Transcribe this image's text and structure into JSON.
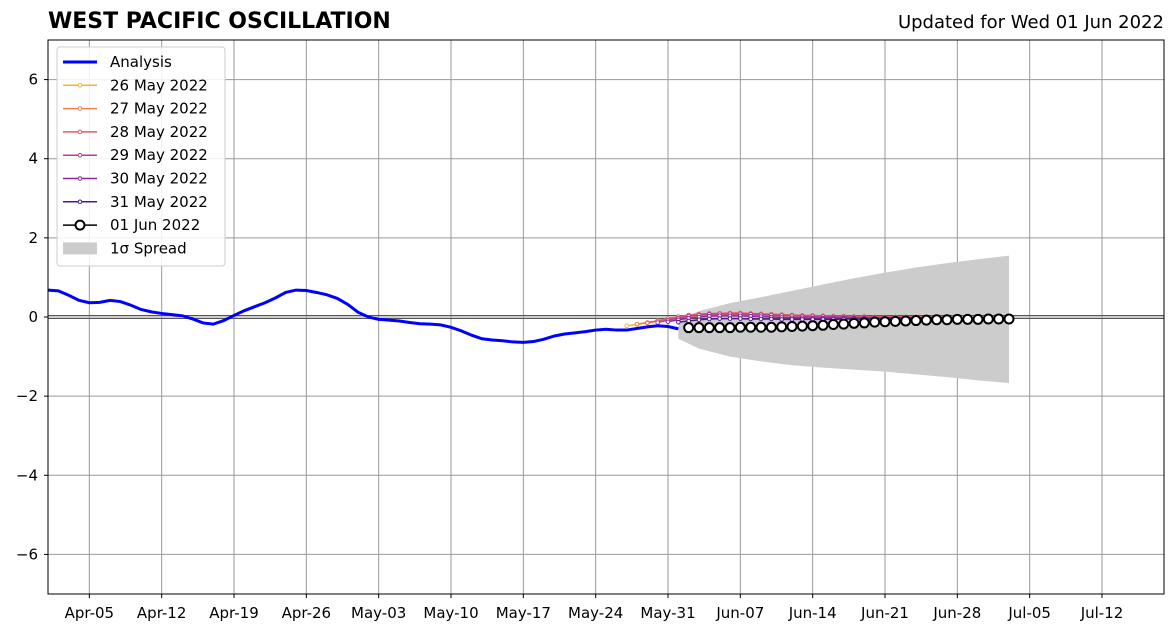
{
  "chart_data": {
    "type": "line",
    "title": "WEST PACIFIC OSCILLATION",
    "subtitle": "Updated for Wed 01 Jun 2022",
    "xlabel": "",
    "ylabel": "",
    "xlim": [
      "2022-04-01",
      "2022-07-18"
    ],
    "ylim": [
      -7,
      7
    ],
    "x_ticks": [
      "2022-04-05",
      "2022-04-12",
      "2022-04-19",
      "2022-04-26",
      "2022-05-03",
      "2022-05-10",
      "2022-05-17",
      "2022-05-24",
      "2022-05-31",
      "2022-06-07",
      "2022-06-14",
      "2022-06-21",
      "2022-06-28",
      "2022-07-05",
      "2022-07-12"
    ],
    "x_tick_labels": [
      "Apr-05",
      "Apr-12",
      "Apr-19",
      "Apr-26",
      "May-03",
      "May-10",
      "May-17",
      "May-24",
      "May-31",
      "Jun-07",
      "Jun-14",
      "Jun-21",
      "Jun-28",
      "Jul-05",
      "Jul-12"
    ],
    "y_ticks": [
      -6,
      -4,
      -2,
      0,
      2,
      4,
      6
    ],
    "y_tick_labels": [
      "−6",
      "−4",
      "−2",
      "0",
      "2",
      "4",
      "6"
    ],
    "grid": true,
    "zero_line": true,
    "legend_position": "top-left",
    "analysis": {
      "name": "Analysis",
      "color": "#0000ff",
      "x": [
        "2022-04-01",
        "2022-04-02",
        "2022-04-03",
        "2022-04-04",
        "2022-04-05",
        "2022-04-06",
        "2022-04-07",
        "2022-04-08",
        "2022-04-09",
        "2022-04-10",
        "2022-04-11",
        "2022-04-12",
        "2022-04-13",
        "2022-04-14",
        "2022-04-15",
        "2022-04-16",
        "2022-04-17",
        "2022-04-18",
        "2022-04-19",
        "2022-04-20",
        "2022-04-21",
        "2022-04-22",
        "2022-04-23",
        "2022-04-24",
        "2022-04-25",
        "2022-04-26",
        "2022-04-27",
        "2022-04-28",
        "2022-04-29",
        "2022-04-30",
        "2022-05-01",
        "2022-05-02",
        "2022-05-03",
        "2022-05-04",
        "2022-05-05",
        "2022-05-06",
        "2022-05-07",
        "2022-05-08",
        "2022-05-09",
        "2022-05-10",
        "2022-05-11",
        "2022-05-12",
        "2022-05-13",
        "2022-05-14",
        "2022-05-15",
        "2022-05-16",
        "2022-05-17",
        "2022-05-18",
        "2022-05-19",
        "2022-05-20",
        "2022-05-21",
        "2022-05-22",
        "2022-05-23",
        "2022-05-24",
        "2022-05-25",
        "2022-05-26",
        "2022-05-27",
        "2022-05-28",
        "2022-05-29",
        "2022-05-30",
        "2022-05-31",
        "2022-06-01"
      ],
      "y": [
        0.68,
        0.66,
        0.55,
        0.42,
        0.36,
        0.37,
        0.42,
        0.39,
        0.3,
        0.19,
        0.13,
        0.09,
        0.06,
        0.03,
        -0.05,
        -0.15,
        -0.18,
        -0.09,
        0.04,
        0.16,
        0.26,
        0.36,
        0.48,
        0.62,
        0.68,
        0.67,
        0.62,
        0.56,
        0.47,
        0.32,
        0.12,
        0,
        -0.06,
        -0.08,
        -0.1,
        -0.14,
        -0.17,
        -0.18,
        -0.2,
        -0.26,
        -0.35,
        -0.46,
        -0.55,
        -0.58,
        -0.6,
        -0.63,
        -0.64,
        -0.62,
        -0.56,
        -0.48,
        -0.43,
        -0.4,
        -0.37,
        -0.33,
        -0.31,
        -0.33,
        -0.33,
        -0.29,
        -0.25,
        -0.22,
        -0.24,
        -0.3
      ]
    },
    "forecasts": [
      {
        "name": "26 May 2022",
        "color": "#f9b32f",
        "start": "2022-05-27",
        "y": [
          -0.22,
          -0.19,
          -0.15,
          -0.1,
          -0.06,
          -0.02,
          0,
          0.02,
          0.03,
          0.04,
          0.04,
          0.04,
          0.04,
          0.04,
          0.03,
          0.03,
          0.03,
          0.02,
          0.02,
          0.02,
          0.01,
          0.01,
          0.01,
          0.01,
          0,
          0,
          0,
          0,
          0,
          0
        ]
      },
      {
        "name": "27 May 2022",
        "color": "#f0804a",
        "start": "2022-05-28",
        "y": [
          -0.18,
          -0.14,
          -0.09,
          -0.04,
          0,
          0.03,
          0.05,
          0.06,
          0.06,
          0.06,
          0.06,
          0.05,
          0.05,
          0.04,
          0.04,
          0.03,
          0.03,
          0.02,
          0.02,
          0.02,
          0.01,
          0.01,
          0.01,
          0,
          0,
          0,
          0,
          0,
          0,
          0
        ]
      },
      {
        "name": "28 May 2022",
        "color": "#e05c6b",
        "start": "2022-05-29",
        "y": [
          -0.15,
          -0.1,
          -0.04,
          0.01,
          0.05,
          0.07,
          0.09,
          0.09,
          0.1,
          0.1,
          0.09,
          0.08,
          0.07,
          0.06,
          0.05,
          0.04,
          0.04,
          0.03,
          0.02,
          0.02,
          0.01,
          0.01,
          0,
          0,
          0,
          0,
          0,
          0,
          0,
          0
        ]
      },
      {
        "name": "29 May 2022",
        "color": "#b93e8c",
        "start": "2022-05-30",
        "y": [
          -0.14,
          -0.08,
          -0.03,
          0.02,
          0.05,
          0.07,
          0.08,
          0.08,
          0.08,
          0.07,
          0.06,
          0.05,
          0.04,
          0.03,
          0.02,
          0.01,
          0.01,
          0,
          0,
          -0.01,
          -0.01,
          -0.01,
          -0.01,
          -0.01,
          -0.01,
          -0.01,
          -0.01,
          -0.01,
          -0.01,
          -0.01
        ]
      },
      {
        "name": "30 May 2022",
        "color": "#8b26a6",
        "start": "2022-05-31",
        "y": [
          -0.12,
          -0.07,
          -0.03,
          0,
          0.02,
          0.03,
          0.03,
          0.03,
          0.02,
          0.01,
          0,
          -0.01,
          -0.02,
          -0.02,
          -0.03,
          -0.03,
          -0.03,
          -0.03,
          -0.03,
          -0.03,
          -0.03,
          -0.02,
          -0.02,
          -0.02,
          -0.02,
          -0.02,
          -0.02,
          -0.02,
          -0.02,
          -0.02
        ]
      },
      {
        "name": "31 May 2022",
        "color": "#4a1a8c",
        "start": "2022-06-01",
        "y": [
          -0.13,
          -0.1,
          -0.07,
          -0.05,
          -0.04,
          -0.04,
          -0.04,
          -0.05,
          -0.05,
          -0.05,
          -0.06,
          -0.06,
          -0.06,
          -0.06,
          -0.06,
          -0.06,
          -0.05,
          -0.05,
          -0.05,
          -0.05,
          -0.04,
          -0.04,
          -0.04,
          -0.04,
          -0.03,
          -0.03,
          -0.03,
          -0.03,
          -0.03,
          -0.03
        ]
      },
      {
        "name": "01 Jun 2022",
        "color": "#000000",
        "start": "2022-06-02",
        "y": [
          -0.27,
          -0.27,
          -0.27,
          -0.27,
          -0.27,
          -0.26,
          -0.26,
          -0.26,
          -0.26,
          -0.25,
          -0.24,
          -0.23,
          -0.22,
          -0.21,
          -0.19,
          -0.18,
          -0.16,
          -0.15,
          -0.13,
          -0.12,
          -0.11,
          -0.1,
          -0.09,
          -0.08,
          -0.07,
          -0.07,
          -0.06,
          -0.06,
          -0.06,
          -0.05,
          -0.05,
          -0.05
        ]
      }
    ],
    "spread": {
      "name": "1σ Spread",
      "color": "#cccccc",
      "x": [
        "2022-06-01",
        "2022-06-03",
        "2022-06-06",
        "2022-06-09",
        "2022-06-12",
        "2022-06-15",
        "2022-06-18",
        "2022-06-21",
        "2022-06-24",
        "2022-06-27",
        "2022-06-30",
        "2022-07-03"
      ],
      "upper": [
        -0.05,
        0.15,
        0.35,
        0.5,
        0.66,
        0.82,
        0.98,
        1.12,
        1.25,
        1.36,
        1.46,
        1.55
      ],
      "lower": [
        -0.55,
        -0.8,
        -1.0,
        -1.12,
        -1.22,
        -1.28,
        -1.33,
        -1.38,
        -1.45,
        -1.52,
        -1.6,
        -1.67
      ]
    }
  }
}
